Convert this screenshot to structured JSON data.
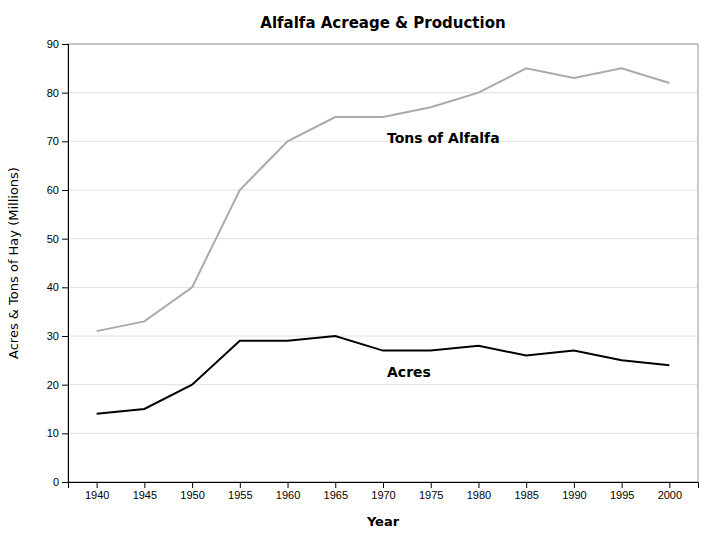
{
  "chart_data": {
    "type": "line",
    "title": "Alfalfa Acreage & Production",
    "xlabel": "Year",
    "ylabel": "Acres & Tons of Hay (Millions)",
    "x": [
      1940,
      1945,
      1950,
      1955,
      1960,
      1965,
      1970,
      1975,
      1980,
      1985,
      1990,
      1995,
      2000
    ],
    "series": [
      {
        "name": "Tons of Alfalfa",
        "color": "#aaaaaa",
        "values": [
          31,
          33,
          40,
          60,
          70,
          75,
          75,
          77,
          80,
          85,
          83,
          85,
          82
        ]
      },
      {
        "name": "Acres",
        "color": "#000000",
        "values": [
          14,
          15,
          20,
          29,
          29,
          30,
          27,
          27,
          28,
          26,
          27,
          25,
          24
        ]
      }
    ],
    "xlim": [
      1937,
      2003
    ],
    "xticks": [
      1940,
      1945,
      1950,
      1955,
      1960,
      1965,
      1970,
      1975,
      1980,
      1985,
      1990,
      1995,
      2000
    ],
    "ylim": [
      0,
      90
    ],
    "yticks": [
      0,
      10,
      20,
      30,
      40,
      50,
      60,
      70,
      80,
      90
    ],
    "grid": true
  }
}
